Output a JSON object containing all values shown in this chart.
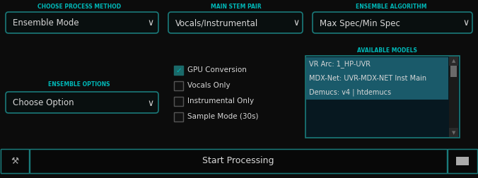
{
  "bg_color": "#0c0c0c",
  "border_color": "#1a7a7a",
  "text_color_cyan": "#00b8b8",
  "text_color_white": "#d8d8d8",
  "dropdown_bg": "#090f0f",
  "list_bg": "#071820",
  "list_highlight": "#1a5a6a",
  "checkbox_checked_bg": "#1a6a6a",
  "scrollbar_bg": "#1a1a1a",
  "scrollbar_thumb": "#6a6a6a",
  "label1": "CHOOSE PROCESS METHOD",
  "label2": "MAIN STEM PAIR",
  "label3": "ENSEMBLE ALGORITHM",
  "label4": "ENSEMBLE OPTIONS",
  "label5": "AVAILABLE MODELS",
  "dd1": "Ensemble Mode",
  "dd2": "Vocals/Instrumental",
  "dd3": "Max Spec/Min Spec",
  "dd4": "Choose Option",
  "checkbox_items": [
    "GPU Conversion",
    "Vocals Only",
    "Instrumental Only",
    "Sample Mode (30s)"
  ],
  "checkbox_checked": [
    true,
    false,
    false,
    false
  ],
  "model_items": [
    "VR Arc: 1_HP-UVR",
    "MDX-Net: UVR-MDX-NET Inst Main",
    "Demucs: v4 | htdemucs"
  ],
  "bottom_btn": "Start Processing",
  "fig_w": 6.76,
  "fig_h": 2.52,
  "dpi": 100
}
